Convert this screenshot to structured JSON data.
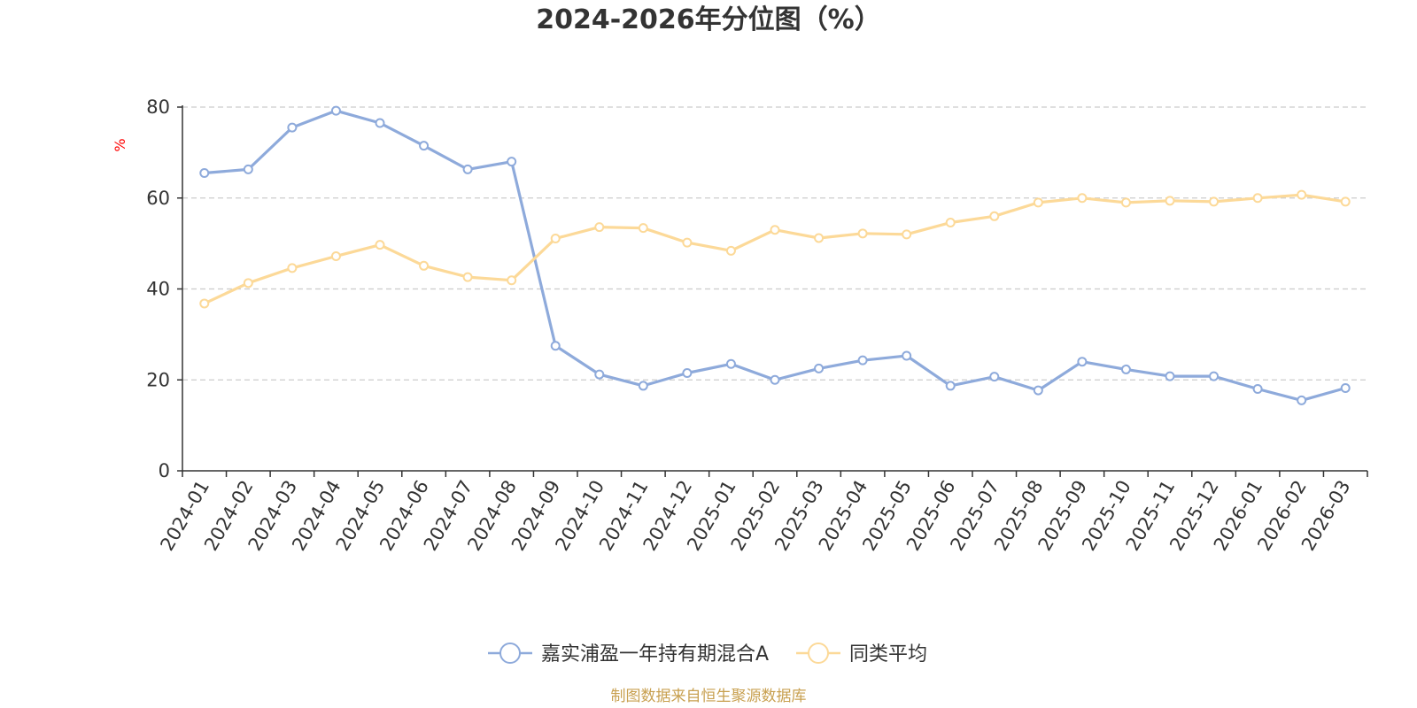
{
  "chart_data": {
    "type": "line",
    "title": "2024-2026年分位图（%）",
    "ylabel": "%",
    "ylim": [
      0,
      80
    ],
    "yticks": [
      0,
      20,
      40,
      60,
      80
    ],
    "grid": true,
    "legend_position": "bottom",
    "categories": [
      "2024-01",
      "2024-02",
      "2024-03",
      "2024-04",
      "2024-05",
      "2024-06",
      "2024-07",
      "2024-08",
      "2024-09",
      "2024-10",
      "2024-11",
      "2024-12",
      "2025-01",
      "2025-02",
      "2025-03",
      "2025-04",
      "2025-05",
      "2025-06",
      "2025-07",
      "2025-08",
      "2025-09",
      "2025-10",
      "2025-11",
      "2025-12",
      "2026-01",
      "2026-02",
      "2026-03"
    ],
    "series": [
      {
        "name": "嘉实浦盈一年持有期混合A",
        "color": "#8eaadb",
        "values": [
          65.5,
          66.3,
          75.5,
          79.2,
          76.5,
          71.5,
          66.3,
          68.0,
          27.5,
          21.2,
          18.7,
          21.5,
          23.5,
          20.0,
          22.5,
          24.3,
          25.3,
          18.7,
          20.7,
          17.7,
          24.0,
          22.3,
          20.8,
          20.8,
          18.0,
          15.5,
          18.2
        ]
      },
      {
        "name": "同类平均",
        "color": "#fcd998",
        "values": [
          36.8,
          41.3,
          44.6,
          47.2,
          49.7,
          45.1,
          42.6,
          41.9,
          51.1,
          53.6,
          53.4,
          50.2,
          48.4,
          53.0,
          51.2,
          52.2,
          52.0,
          54.6,
          56.0,
          59.0,
          60.0,
          59.0,
          59.4,
          59.2,
          60.0,
          60.7,
          59.2
        ]
      }
    ]
  },
  "source_text": "制图数据来自恒生聚源数据库",
  "colors": {
    "axis": "#333333",
    "grid": "#cccccc",
    "ylabel": "#ff0000",
    "source": "#c8a050",
    "title": "#333333"
  }
}
